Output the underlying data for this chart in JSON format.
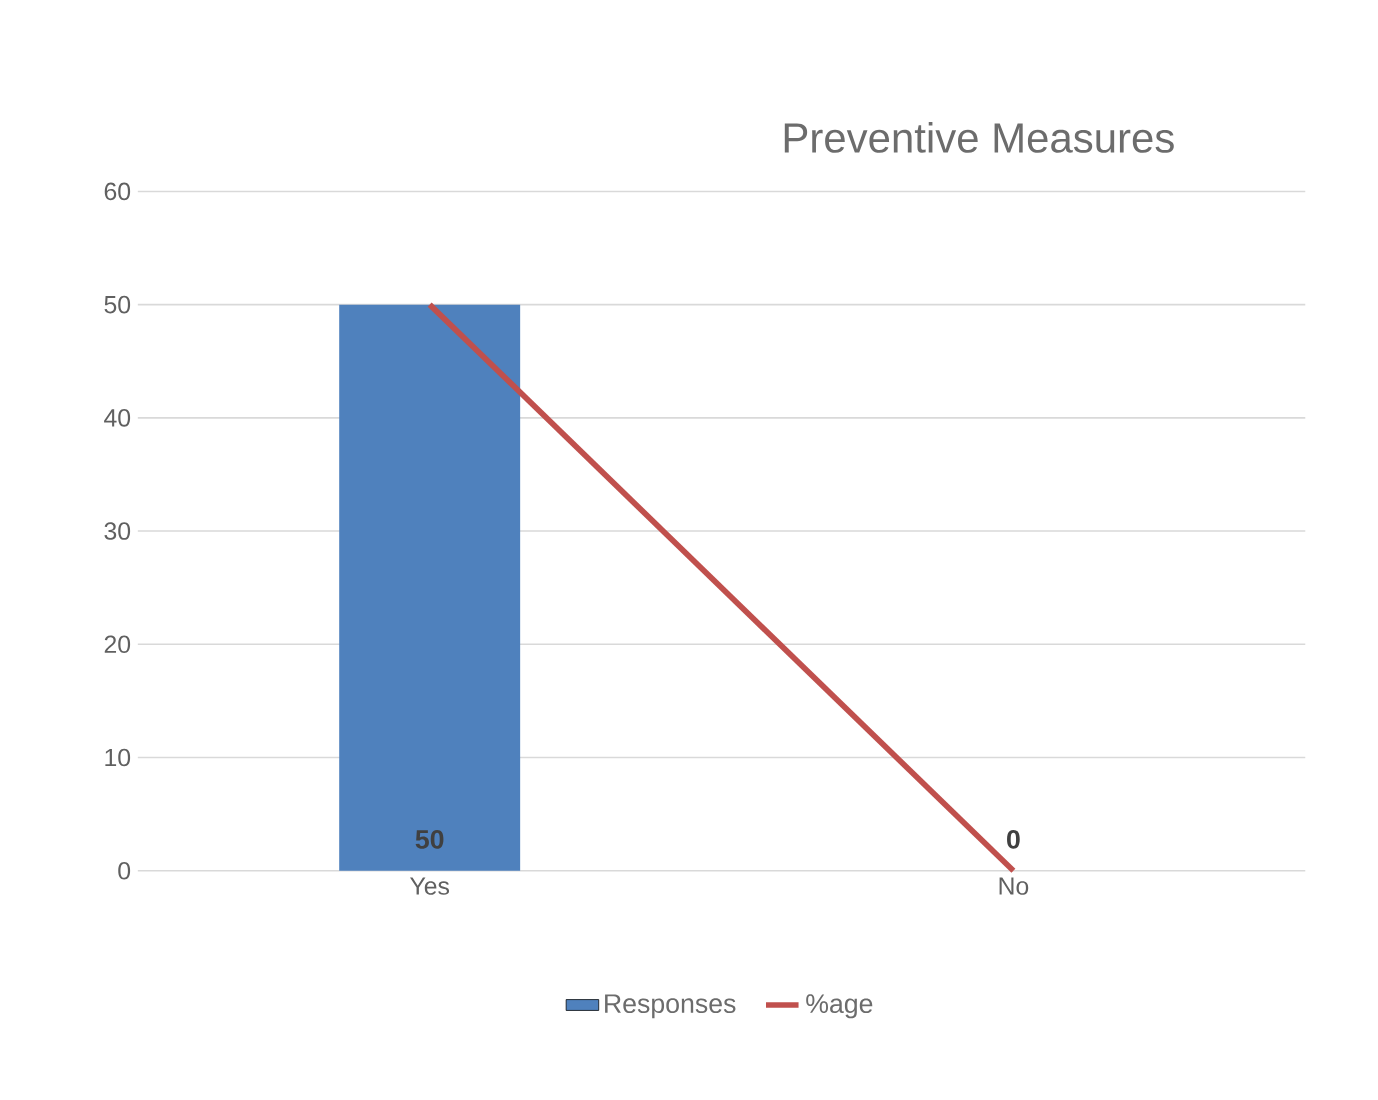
{
  "chart_data": {
    "type": "bar",
    "title": "Preventive Measures",
    "categories": [
      "Yes",
      "No"
    ],
    "series": [
      {
        "name": "Responses",
        "color": "#4f81bd",
        "values": [
          50,
          0
        ],
        "value_labels": [
          "50",
          "0"
        ]
      },
      {
        "name": "%age",
        "type": "line",
        "color": "#c0504d",
        "values": [
          50,
          0
        ]
      }
    ],
    "ylim": [
      0,
      60
    ],
    "yticks": [
      0,
      10,
      20,
      30,
      40,
      50,
      60
    ],
    "grid": "y",
    "legend": "bottom",
    "marker": "none"
  }
}
